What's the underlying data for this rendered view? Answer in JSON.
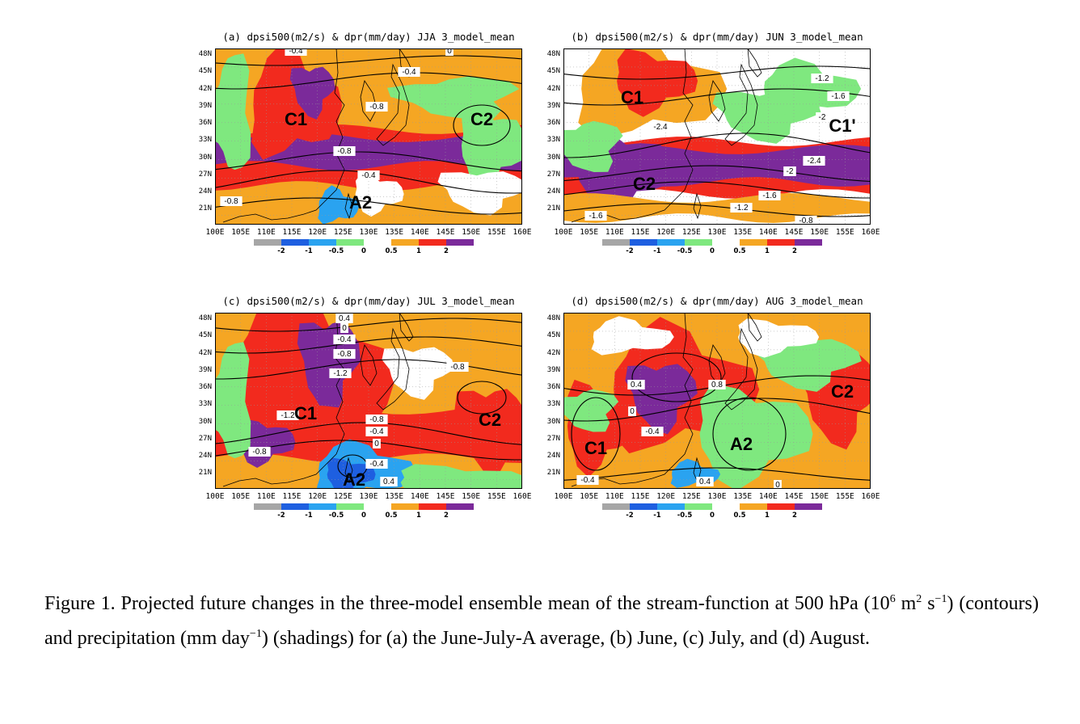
{
  "colors": {
    "shades": [
      "#a6a6a6",
      "#1e5fe0",
      "#2aa3f0",
      "#7fe87f",
      "#ffffff",
      "#f5a623",
      "#f22a1e",
      "#7b2a9a"
    ],
    "contour": "#000000",
    "land": "#000000"
  },
  "colorbar": {
    "labels": [
      "-2",
      "-1",
      "-0.5",
      "0",
      "0.5",
      "1",
      "2"
    ]
  },
  "axes": {
    "lat_labels": [
      "48N",
      "45N",
      "42N",
      "39N",
      "36N",
      "33N",
      "30N",
      "27N",
      "24N",
      "21N"
    ],
    "lon_labels": [
      "100E",
      "105E",
      "110E",
      "115E",
      "120E",
      "125E",
      "130E",
      "135E",
      "140E",
      "145E",
      "150E",
      "155E",
      "160E"
    ]
  },
  "panels": [
    {
      "id": "a",
      "title": "(a) dpsi500(m2/s) & dpr(mm/day) JJA 3_model_mean",
      "region_labels": [
        "C1",
        "C2",
        "A2"
      ],
      "contour_labels": [
        "-0.4",
        "0",
        "-0.4",
        "-0.8",
        "-0.8",
        "-0.4",
        "-0.8"
      ]
    },
    {
      "id": "b",
      "title": "(b) dpsi500(m2/s) & dpr(mm/day) JUN 3_model_mean",
      "region_labels": [
        "C1",
        "C1'",
        "C2"
      ],
      "contour_labels": [
        "-1.2",
        "-1.6",
        "-2",
        "-2.4",
        "-2.4",
        "-2",
        "-1.6",
        "-1.2",
        "-0.8",
        "-1.6"
      ]
    },
    {
      "id": "c",
      "title": "(c) dpsi500(m2/s) & dpr(mm/day) JUL 3_model_mean",
      "region_labels": [
        "C1",
        "C2",
        "A2"
      ],
      "contour_labels": [
        "0.4",
        "0",
        "-0.4",
        "-0.8",
        "-1.2",
        "-1.2",
        "-0.8",
        "-0.4",
        "0",
        "-0.8",
        "-0.8",
        "-0.4",
        "0.4"
      ]
    },
    {
      "id": "d",
      "title": "(d) dpsi500(m2/s) & dpr(mm/day) AUG 3_model_mean",
      "region_labels": [
        "C1",
        "A2",
        "C2"
      ],
      "contour_labels": [
        "0.4",
        "0.8",
        "0",
        "-0.4",
        "-0.4",
        "0.4",
        "0"
      ]
    }
  ],
  "caption": {
    "prefix": "Figure 1. Projected future changes in the three-model ensemble mean of the stream-function at 500 hPa (10",
    "sup1": "6",
    "mid1": " m",
    "sup2": "2",
    "mid2": " s",
    "sup3": "−1",
    "mid3": ") (contours) and precipitation (mm day",
    "sup4": "−1",
    "suffix": ") (shadings) for (a) the June-July-A average, (b) June, (c) July, and (d) August."
  }
}
